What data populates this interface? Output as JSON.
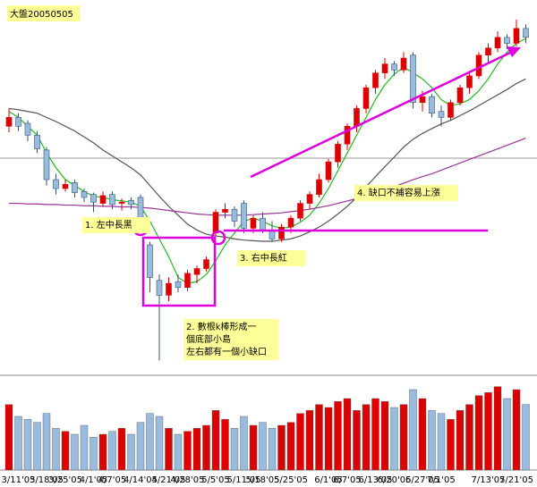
{
  "chart_data": [
    {
      "type": "candlestick",
      "title": "大盤20050505",
      "categories": [
        null,
        "3/11'05",
        null,
        null,
        "3/18'05",
        null,
        "3/25'05",
        null,
        null,
        "4/1'05",
        null,
        "4/7'05",
        null,
        null,
        "4/14'05",
        null,
        null,
        "4/21'05",
        null,
        "4/28'05",
        null,
        null,
        "5/5'05",
        null,
        null,
        "5/11'05",
        null,
        "5/18'05",
        null,
        null,
        "5/25'05",
        null,
        null,
        null,
        "6/1'05",
        null,
        "6/7'05",
        null,
        null,
        "6/13'05",
        null,
        "6/20'05",
        null,
        null,
        "6/27'05",
        null,
        "7/1'05",
        null,
        null,
        null,
        null,
        "7/13'05",
        null,
        null,
        "7/21'05",
        null
      ],
      "open": [
        6240,
        6255,
        6245,
        6225,
        6200,
        6150,
        6135,
        6145,
        6130,
        6125,
        6110,
        6125,
        6110,
        6115,
        6120,
        6040,
        5980,
        5955,
        5978,
        5968,
        5990,
        6000,
        6060,
        6095,
        6100,
        6110,
        6068,
        6085,
        6065,
        6050,
        6070,
        6085,
        6110,
        6125,
        6150,
        6180,
        6210,
        6240,
        6270,
        6305,
        6330,
        6345,
        6335,
        6360,
        6280,
        6290,
        6265,
        6255,
        6280,
        6305,
        6325,
        6360,
        6372,
        6390,
        6380,
        6405
      ],
      "high": [
        6270,
        6262,
        6250,
        6232,
        6205,
        6160,
        6150,
        6150,
        6135,
        6128,
        6130,
        6130,
        6118,
        6120,
        6125,
        6045,
        5990,
        5985,
        5990,
        5998,
        6005,
        6020,
        6100,
        6110,
        6105,
        6115,
        6090,
        6095,
        6080,
        6075,
        6090,
        6115,
        6130,
        6160,
        6185,
        6215,
        6245,
        6275,
        6310,
        6335,
        6355,
        6350,
        6365,
        6365,
        6300,
        6295,
        6275,
        6285,
        6310,
        6330,
        6365,
        6380,
        6400,
        6395,
        6420,
        6412
      ],
      "low": [
        6230,
        6232,
        6215,
        6195,
        6140,
        6125,
        6130,
        6120,
        6112,
        6095,
        6105,
        6100,
        6098,
        6100,
        6078,
        5960,
        5845,
        5945,
        5960,
        5962,
        5975,
        5995,
        6055,
        6085,
        6070,
        6060,
        6060,
        6060,
        6045,
        6045,
        6060,
        6080,
        6100,
        6120,
        6145,
        6170,
        6200,
        6230,
        6262,
        6295,
        6320,
        6325,
        6330,
        6270,
        6265,
        6255,
        6240,
        6250,
        6275,
        6295,
        6320,
        6345,
        6365,
        6370,
        6375,
        6380
      ],
      "close": [
        6255,
        6240,
        6225,
        6202,
        6150,
        6135,
        6142,
        6128,
        6120,
        6112,
        6123,
        6108,
        6112,
        6108,
        6082,
        5985,
        5955,
        5975,
        5968,
        5992,
        6000,
        6015,
        6095,
        6100,
        6080,
        6068,
        6085,
        6065,
        6050,
        6070,
        6085,
        6110,
        6125,
        6150,
        6180,
        6210,
        6240,
        6270,
        6305,
        6330,
        6345,
        6335,
        6355,
        6280,
        6290,
        6262,
        6255,
        6280,
        6305,
        6325,
        6360,
        6372,
        6390,
        6380,
        6405,
        6390
      ],
      "up_color": "#dd0000",
      "down_color": "#99bbdd",
      "ylim": [
        5835,
        6450
      ],
      "lines": [
        {
          "color": "#22bb22",
          "values": [
            6265,
            6255,
            6240,
            6225,
            6195,
            6170,
            6150,
            6140,
            6130,
            6122,
            6120,
            6116,
            6114,
            6112,
            6105,
            6080,
            6050,
            6020,
            5985,
            5975,
            5978,
            5990,
            6013,
            6040,
            6060,
            6080,
            6085,
            6080,
            6072,
            6068,
            6070,
            6078,
            6090,
            6110,
            6135,
            6165,
            6195,
            6225,
            6255,
            6285,
            6310,
            6328,
            6340,
            6330,
            6320,
            6305,
            6285,
            6275,
            6278,
            6285,
            6300,
            6320,
            6345,
            6365,
            6380,
            6388
          ]
        },
        {
          "color": "#555555",
          "values": [
            6270,
            6268,
            6265,
            6262,
            6255,
            6248,
            6240,
            6232,
            6222,
            6212,
            6200,
            6190,
            6180,
            6170,
            6158,
            6140,
            6122,
            6105,
            6090,
            6075,
            6065,
            6058,
            6055,
            6053,
            6050,
            6048,
            6047,
            6046,
            6046,
            6048,
            6050,
            6055,
            6062,
            6070,
            6080,
            6092,
            6105,
            6120,
            6138,
            6155,
            6172,
            6188,
            6205,
            6218,
            6228,
            6236,
            6244,
            6250,
            6258,
            6266,
            6275,
            6284,
            6293,
            6302,
            6312,
            6320
          ]
        },
        {
          "color": "#993399",
          "values": [
            6110,
            6110,
            6109,
            6109,
            6108,
            6108,
            6107,
            6107,
            6106,
            6106,
            6105,
            6105,
            6104,
            6104,
            6103,
            6102,
            6100,
            6098,
            6096,
            6094,
            6092,
            6091,
            6090,
            6090,
            6090,
            6090,
            6091,
            6092,
            6093,
            6094,
            6096,
            6098,
            6100,
            6103,
            6106,
            6110,
            6114,
            6118,
            6123,
            6128,
            6133,
            6138,
            6144,
            6150,
            6155,
            6160,
            6166,
            6172,
            6178,
            6184,
            6190,
            6196,
            6202,
            6208,
            6214,
            6220
          ]
        }
      ],
      "annotations": [
        [
          "1. 左中長黑"
        ],
        [
          "2. 數根k棒形成一",
          "個底部小島",
          "左右都有一個小缺口"
        ],
        [
          "3. 右中長紅"
        ],
        [
          "4. 缺口不補容易上漲"
        ]
      ]
    },
    {
      "type": "bar",
      "values": [
        110,
        90,
        85,
        80,
        95,
        70,
        65,
        60,
        75,
        55,
        60,
        65,
        70,
        60,
        80,
        95,
        90,
        70,
        60,
        65,
        70,
        75,
        100,
        85,
        70,
        90,
        75,
        80,
        70,
        75,
        80,
        95,
        100,
        110,
        105,
        115,
        120,
        100,
        110,
        120,
        115,
        105,
        110,
        135,
        120,
        100,
        95,
        85,
        100,
        110,
        125,
        130,
        140,
        120,
        135,
        110
      ],
      "ylim": [
        0,
        150
      ]
    }
  ]
}
